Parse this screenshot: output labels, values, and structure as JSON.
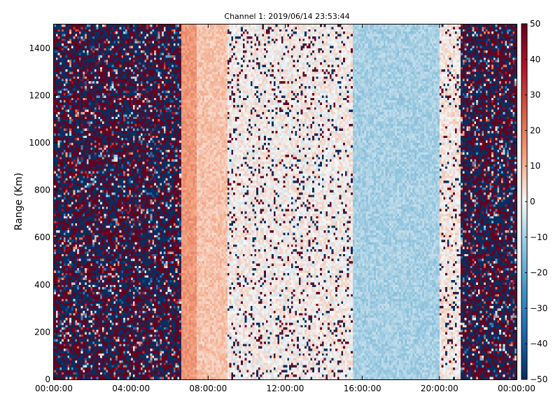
{
  "chart_data": {
    "type": "heatmap",
    "title": "Channel 1: 2019/06/14 23:53:44",
    "xlabel": "",
    "ylabel": "Range (Km)",
    "x_ticks": [
      "00:00:00",
      "04:00:00",
      "08:00:00",
      "12:00:00",
      "16:00:00",
      "20:00:00",
      "00:00:00"
    ],
    "x_range_hours": [
      0,
      24
    ],
    "y_ticks": [
      0,
      200,
      400,
      600,
      800,
      1000,
      1200,
      1400
    ],
    "y_range_km": [
      0,
      1500
    ],
    "colorbar": {
      "ticks": [
        50,
        40,
        30,
        20,
        10,
        0,
        -10,
        -20,
        -30,
        -40,
        -50
      ],
      "range": [
        -50,
        50
      ],
      "colormap": "RdBu_r",
      "low_color": "#053061",
      "mid_color": "#f7f7f7",
      "high_color": "#67001f"
    },
    "regions": [
      {
        "x_range_hours": [
          0.0,
          6.6
        ],
        "pattern": "noise",
        "mean": 0
      },
      {
        "x_range_hours": [
          6.6,
          7.4
        ],
        "pattern": "smooth",
        "mean": 15
      },
      {
        "x_range_hours": [
          7.4,
          9.0
        ],
        "pattern": "smooth",
        "mean": 8
      },
      {
        "x_range_hours": [
          9.0,
          15.5
        ],
        "pattern": "sparse_noise",
        "mean": 1
      },
      {
        "x_range_hours": [
          15.5,
          20.0
        ],
        "pattern": "smooth",
        "mean": -10
      },
      {
        "x_range_hours": [
          20.0,
          21.1
        ],
        "pattern": "sparse_noise",
        "mean": 2
      },
      {
        "x_range_hours": [
          21.1,
          24.0
        ],
        "pattern": "noise",
        "mean": 0
      }
    ]
  }
}
